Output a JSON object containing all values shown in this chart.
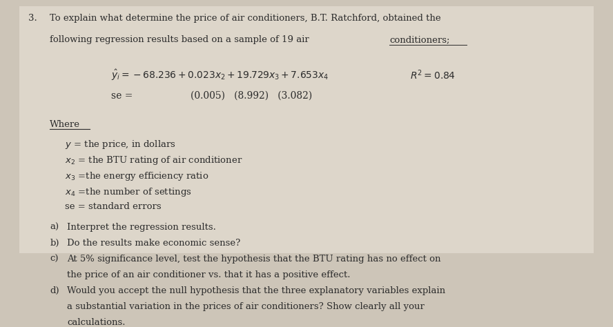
{
  "bg_color": "#cdc5b8",
  "text_color": "#2c2c2c",
  "title_number": "3.",
  "title_line1": "To explain what determine the price of air conditioners, B.T. Ratchford, obtained the",
  "title_line2_normal": "following regression results based on a sample of 19 air ",
  "title_line2_underline": "conditioners;",
  "fontsize_body": 9.5,
  "fontsize_eq": 10,
  "inner_bg": "#ddd6ca"
}
